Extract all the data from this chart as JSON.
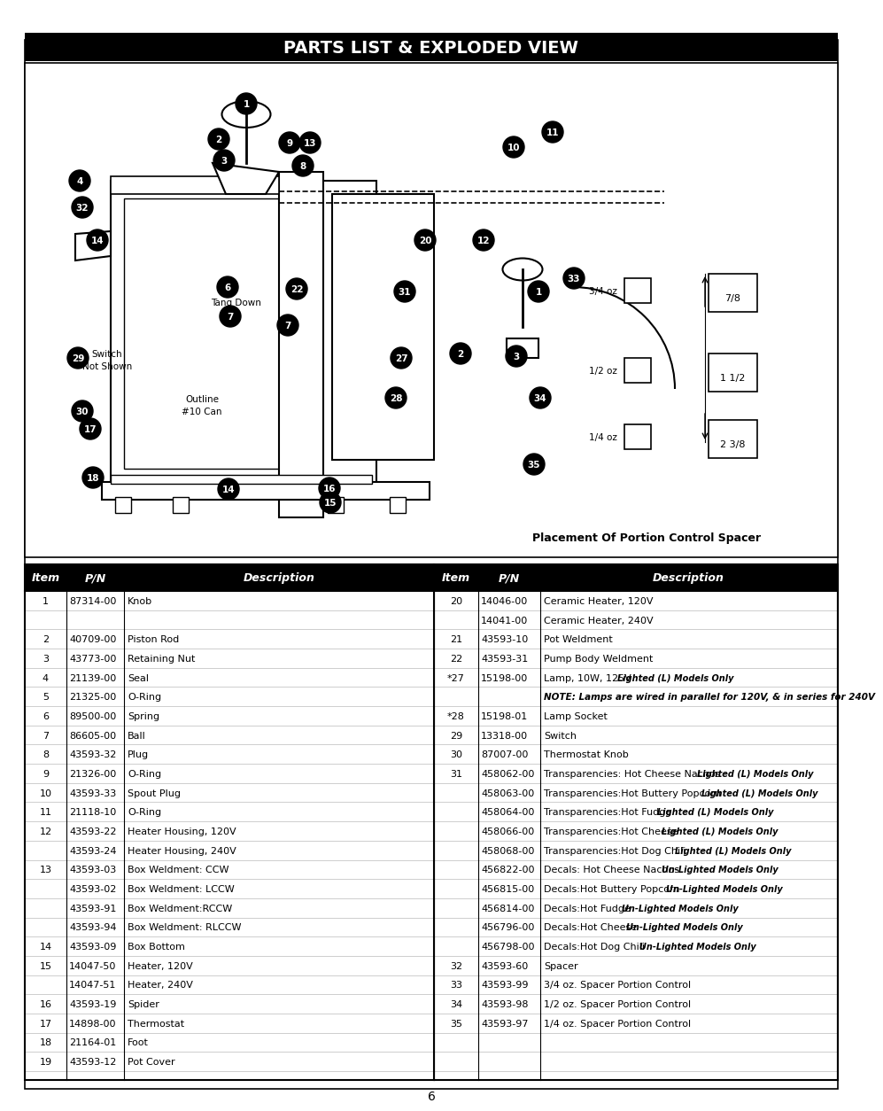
{
  "title": "PARTS LIST & EXPLODED VIEW",
  "page_number": "6",
  "bg_color": "#ffffff",
  "outer_bg": "#ffffff",
  "header_bg": "#000000",
  "header_fg": "#ffffff",
  "table_header_bg": "#000000",
  "table_header_fg": "#ffffff",
  "table_columns": [
    "Item",
    "P/N",
    "Description",
    "Item",
    "P/N",
    "Description"
  ],
  "diagram_caption": "Placement Of Portion Control Spacer",
  "rows": [
    [
      "1",
      "87314-00",
      "Knob",
      "20",
      "14046-00",
      "Ceramic Heater, 120V"
    ],
    [
      "",
      "",
      "",
      "",
      "14041-00",
      "Ceramic Heater, 240V"
    ],
    [
      "2",
      "40709-00",
      "Piston Rod",
      "21",
      "43593-10",
      "Pot Weldment"
    ],
    [
      "3",
      "43773-00",
      "Retaining Nut",
      "22",
      "43593-31",
      "Pump Body Weldment"
    ],
    [
      "4",
      "21139-00",
      "Seal",
      "*27",
      "15198-00",
      "Lamp, 10W, 125V|Lighted (L) Models Only"
    ],
    [
      "5",
      "21325-00",
      "O-Ring",
      "",
      "",
      "NOTE|: Lamps are wired in parallel for 120V, & in series for 240V"
    ],
    [
      "6",
      "89500-00",
      "Spring",
      "*28",
      "15198-01",
      "Lamp Socket"
    ],
    [
      "7",
      "86605-00",
      "Ball",
      "29",
      "13318-00",
      "Switch"
    ],
    [
      "8",
      "43593-32",
      "Plug",
      "30",
      "87007-00",
      "Thermostat Knob"
    ],
    [
      "9",
      "21326-00",
      "O-Ring",
      "31",
      "458062-00",
      "Transparencies: Hot Cheese Nachos|Lighted (L) Models Only"
    ],
    [
      "10",
      "43593-33",
      "Spout Plug",
      "",
      "458063-00",
      "Transparencies:Hot Buttery Popcorn|Lighted (L) Models Only"
    ],
    [
      "11",
      "21118-10",
      "O-Ring",
      "",
      "458064-00",
      "Transparencies:Hot Fudge|Lighted (L) Models Only"
    ],
    [
      "12",
      "43593-22",
      "Heater Housing, 120V",
      "",
      "458066-00",
      "Transparencies:Hot Cheese|Lighted (L) Models Only"
    ],
    [
      "",
      "43593-24",
      "Heater Housing, 240V",
      "",
      "458068-00",
      "Transparencies:Hot Dog Chili|Lighted (L) Models Only"
    ],
    [
      "13",
      "43593-03",
      "Box Weldment: CCW",
      "",
      "456822-00",
      "Decals: Hot Cheese Nachos|Un-Lighted Models Only"
    ],
    [
      "",
      "43593-02",
      "Box Weldment: LCCW",
      "",
      "456815-00",
      "Decals:Hot Buttery Popcorn|Un-Lighted Models Only"
    ],
    [
      "",
      "43593-91",
      "Box Weldment:RCCW",
      "",
      "456814-00",
      "Decals:Hot Fudge|Un-Lighted Models Only"
    ],
    [
      "",
      "43593-94",
      "Box Weldment: RLCCW",
      "",
      "456796-00",
      "Decals:Hot Cheese|Un-Lighted Models Only"
    ],
    [
      "14",
      "43593-09",
      "Box Bottom",
      "",
      "456798-00",
      "Decals:Hot Dog Chili|Un-Lighted Models Only"
    ],
    [
      "15",
      "14047-50",
      "Heater, 120V",
      "32",
      "43593-60",
      "Spacer"
    ],
    [
      "",
      "14047-51",
      "Heater, 240V",
      "33",
      "43593-99",
      "3/4 oz. Spacer Portion Control"
    ],
    [
      "16",
      "43593-19",
      "Spider",
      "34",
      "43593-98",
      "1/2 oz. Spacer Portion Control"
    ],
    [
      "17",
      "14898-00",
      "Thermostat",
      "35",
      "43593-97",
      "1/4 oz. Spacer Portion Control"
    ],
    [
      "18",
      "21164-01",
      "Foot",
      "",
      "",
      ""
    ],
    [
      "19",
      "43593-12",
      "Pot Cover",
      "",
      "",
      ""
    ]
  ]
}
